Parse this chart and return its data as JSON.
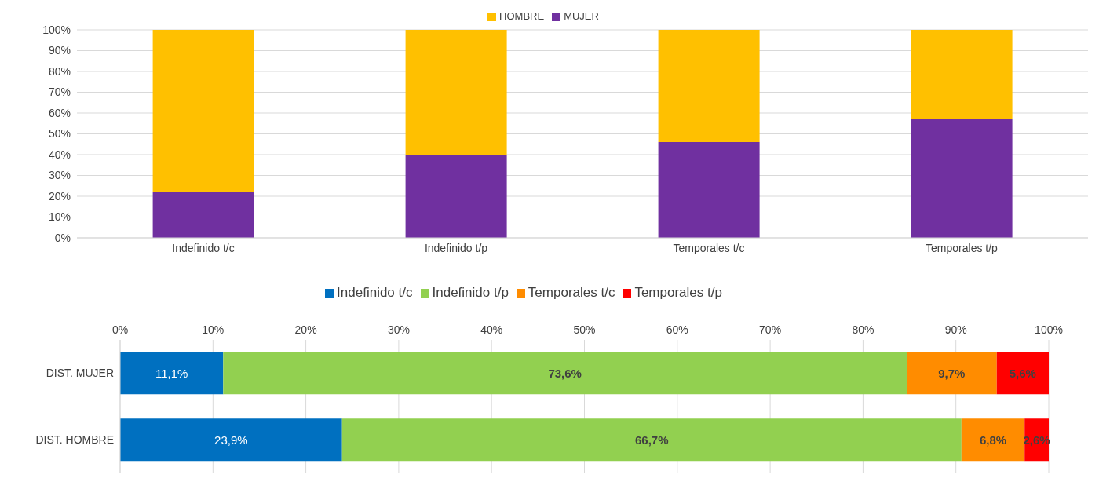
{
  "chart_data": [
    {
      "type": "bar",
      "stacked": true,
      "categories": [
        "Indefinido t/c",
        "Indefinido t/p",
        "Temporales t/c",
        "Temporales t/p"
      ],
      "series": [
        {
          "name": "MUJER",
          "color": "#7030a0",
          "values": [
            22,
            40,
            46,
            57
          ]
        },
        {
          "name": "HOMBRE",
          "color": "#ffc000",
          "values": [
            78,
            60,
            54,
            43
          ]
        }
      ],
      "ylim": [
        0,
        100
      ],
      "yticks": [
        {
          "value": 0,
          "label": "0%"
        },
        {
          "value": 10,
          "label": "10%"
        },
        {
          "value": 20,
          "label": "20%"
        },
        {
          "value": 30,
          "label": "30%"
        },
        {
          "value": 40,
          "label": "40%"
        },
        {
          "value": 50,
          "label": "50%"
        },
        {
          "value": 60,
          "label": "60%"
        },
        {
          "value": 70,
          "label": "70%"
        },
        {
          "value": 80,
          "label": "80%"
        },
        {
          "value": 90,
          "label": "90%"
        },
        {
          "value": 100,
          "label": "100%"
        }
      ],
      "grid": "y",
      "legend": "top"
    },
    {
      "type": "bar",
      "stacked": true,
      "orientation": "horizontal",
      "categories": [
        "DIST. MUJER",
        "DIST. HOMBRE"
      ],
      "series": [
        {
          "name": "Indefinido t/c",
          "color": "#0070c0",
          "values": [
            11.1,
            23.9
          ],
          "value_labels": [
            "11,1%",
            "23,9%"
          ]
        },
        {
          "name": "Indefinido t/p",
          "color": "#92d050",
          "values": [
            73.6,
            66.7
          ],
          "value_labels": [
            "73,6%",
            "66,7%"
          ]
        },
        {
          "name": "Temporales t/c",
          "color": "#ff8c00",
          "values": [
            9.7,
            6.8
          ],
          "value_labels": [
            "9,7%",
            "6,8%"
          ]
        },
        {
          "name": "Temporales t/p",
          "color": "#ff0000",
          "values": [
            5.6,
            2.6
          ],
          "value_labels": [
            "5,6%",
            "2,6%"
          ]
        }
      ],
      "xlim": [
        0,
        100
      ],
      "xticks": [
        {
          "value": 0,
          "label": "0%"
        },
        {
          "value": 10,
          "label": "10%"
        },
        {
          "value": 20,
          "label": "20%"
        },
        {
          "value": 30,
          "label": "30%"
        },
        {
          "value": 40,
          "label": "40%"
        },
        {
          "value": 50,
          "label": "50%"
        },
        {
          "value": 60,
          "label": "60%"
        },
        {
          "value": 70,
          "label": "70%"
        },
        {
          "value": 80,
          "label": "80%"
        },
        {
          "value": 90,
          "label": "90%"
        },
        {
          "value": 100,
          "label": "100%"
        }
      ],
      "grid": "x",
      "legend": "top"
    }
  ]
}
